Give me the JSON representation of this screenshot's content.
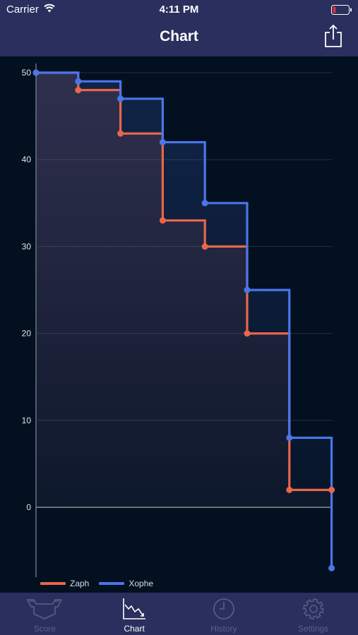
{
  "status_bar": {
    "carrier": "Carrier",
    "time": "4:11 PM"
  },
  "nav": {
    "title": "Chart"
  },
  "colors": {
    "background": "#03101f",
    "bar": "#2a2f5e",
    "zaph": "#e8664a",
    "xophe": "#4a76ec",
    "battery_low": "#e0303a",
    "inactive_tab": "#5a6088"
  },
  "chart_data": {
    "type": "line",
    "step": true,
    "x": [
      0,
      1,
      2,
      3,
      4,
      5,
      6,
      7
    ],
    "ylim": [
      -8,
      50
    ],
    "yticks": [
      0,
      10,
      20,
      30,
      40,
      50
    ],
    "grid": true,
    "legend_position": "bottom-left",
    "series": [
      {
        "name": "Zaph",
        "color": "#e8664a",
        "values": [
          50,
          48,
          43,
          33,
          30,
          20,
          2,
          2
        ]
      },
      {
        "name": "Xophe",
        "color": "#4a76ec",
        "values": [
          50,
          49,
          47,
          42,
          35,
          25,
          8,
          -7
        ]
      }
    ]
  },
  "tabs": [
    {
      "label": "Score",
      "icon": "shield-icon",
      "active": false
    },
    {
      "label": "Chart",
      "icon": "chart-icon",
      "active": true
    },
    {
      "label": "History",
      "icon": "clock-icon",
      "active": false
    },
    {
      "label": "Settings",
      "icon": "gear-icon",
      "active": false
    }
  ]
}
